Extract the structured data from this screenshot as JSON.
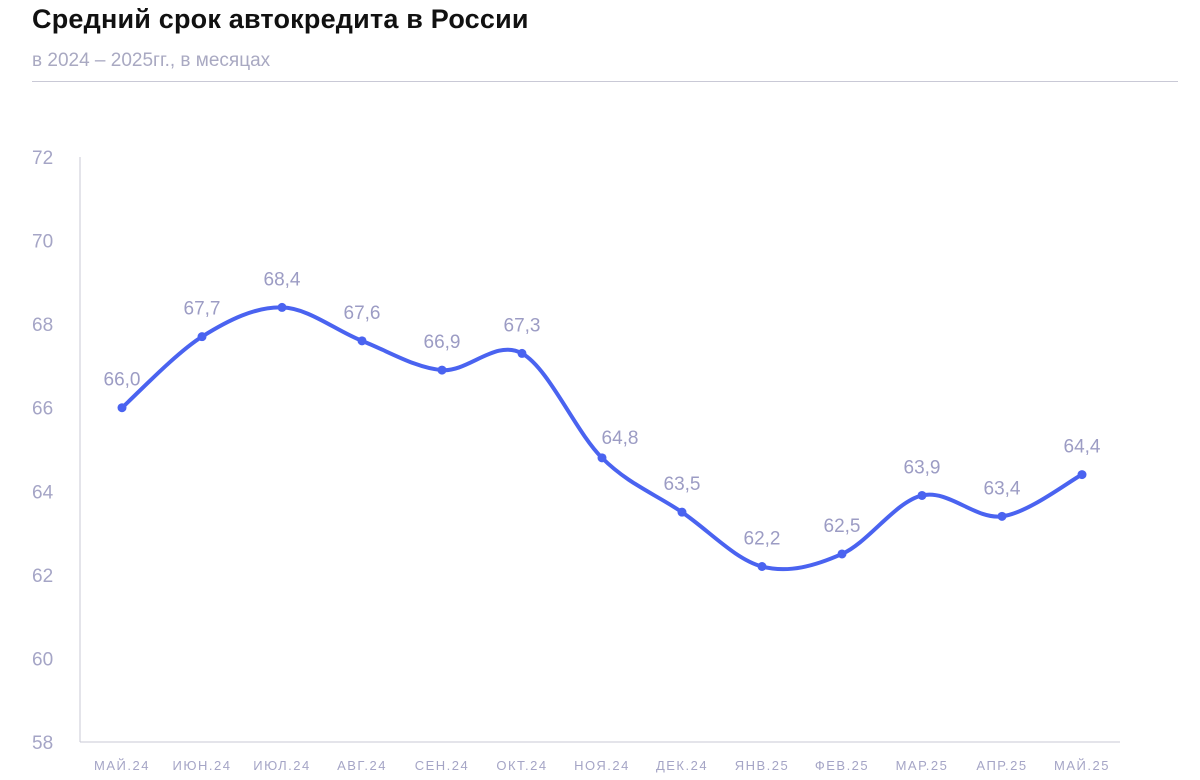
{
  "title": "Средний срок автокредита в России",
  "subtitle": "в 2024 – 2025гг., в месяцах",
  "chart_data": {
    "type": "line",
    "title": "Средний срок автокредита в России",
    "subtitle": "в 2024 – 2025гг., в месяцах",
    "categories": [
      "МАЙ.24",
      "ИЮН.24",
      "ИЮЛ.24",
      "АВГ.24",
      "СЕН.24",
      "ОКТ.24",
      "НОЯ.24",
      "ДЕК.24",
      "ЯНВ.25",
      "ФЕВ.25",
      "МАР.25",
      "АПР.25",
      "МАЙ.25"
    ],
    "values": [
      66.0,
      67.7,
      68.4,
      67.6,
      66.9,
      67.3,
      64.8,
      63.5,
      62.2,
      62.5,
      63.9,
      63.4,
      64.4
    ],
    "data_labels": [
      "66,0",
      "67,7",
      "68,4",
      "67,6",
      "66,9",
      "67,3",
      "64,8",
      "63,5",
      "62,2",
      "62,5",
      "63,9",
      "63,4",
      "64,4"
    ],
    "yticks": [
      58,
      60,
      62,
      64,
      66,
      68,
      70,
      72
    ],
    "ylim": [
      58,
      72
    ],
    "grid": false,
    "line_color": "#4a63f0",
    "label_color": "#9c9cc4",
    "axis_color": "#c9c9d6"
  }
}
